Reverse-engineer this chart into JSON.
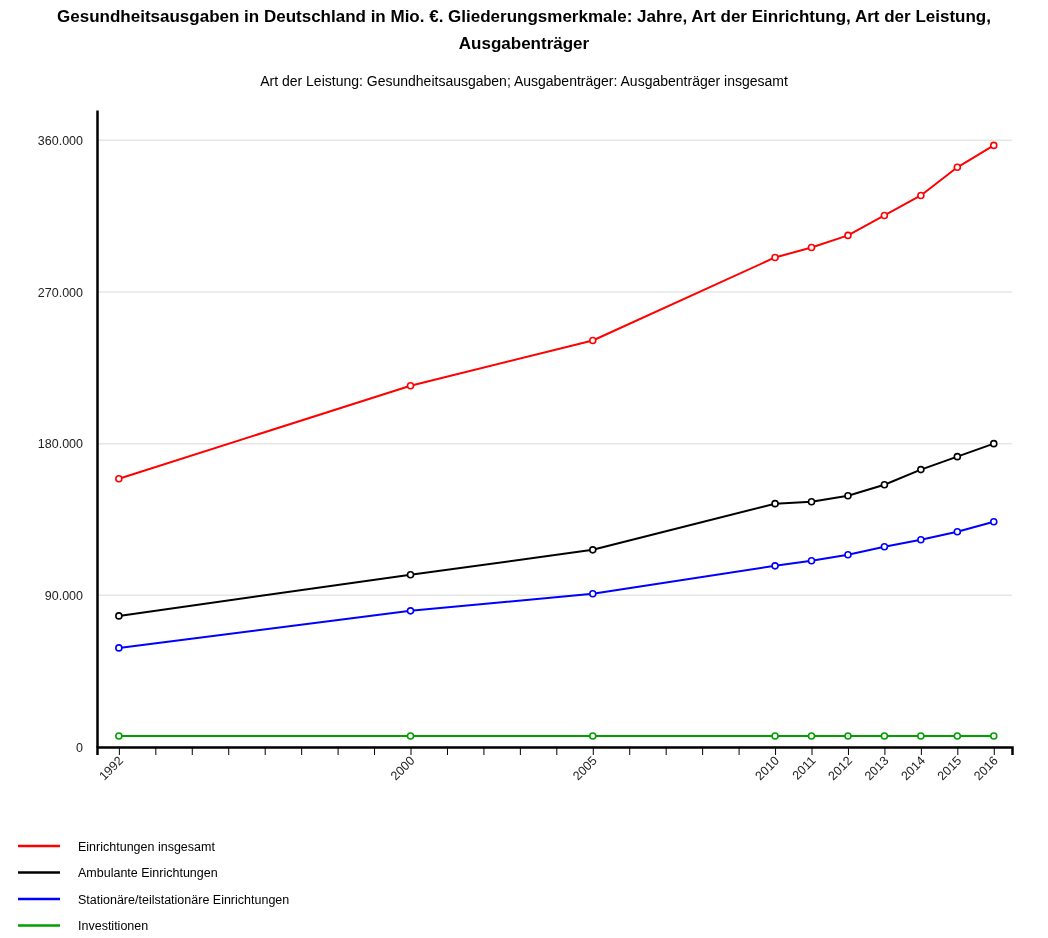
{
  "chart_data": {
    "type": "line",
    "title": "Gesundheitsausgaben in Deutschland in Mio. €. Gliederungsmerkmale: Jahre, Art der Einrichtung, Art der Leistung, Ausgabenträger",
    "subtitle": "Art der Leistung: Gesundheitsausgaben; Ausgabenträger: Ausgabenträger insgesamt",
    "x": [
      1992,
      2000,
      2005,
      2010,
      2011,
      2012,
      2013,
      2014,
      2015,
      2016
    ],
    "xlim": [
      1991.4,
      2016.5
    ],
    "xticks": [
      1992,
      {
        "value": 1993,
        "label": null
      },
      {
        "value": 1994,
        "label": null
      },
      {
        "value": 1995,
        "label": null
      },
      {
        "value": 1996,
        "label": null
      },
      {
        "value": 1997,
        "label": null
      },
      {
        "value": 1998,
        "label": null
      },
      {
        "value": 1999,
        "label": null
      },
      2000,
      {
        "value": 2001,
        "label": null
      },
      {
        "value": 2002,
        "label": null
      },
      {
        "value": 2003,
        "label": null
      },
      {
        "value": 2004,
        "label": null
      },
      2005,
      {
        "value": 2006,
        "label": null
      },
      {
        "value": 2007,
        "label": null
      },
      {
        "value": 2008,
        "label": null
      },
      {
        "value": 2009,
        "label": null
      },
      2010,
      2011,
      2012,
      2013,
      2014,
      2015,
      2016
    ],
    "ylim": [
      0,
      378000
    ],
    "yticks": [
      0,
      {
        "value": 90000,
        "label": "90.000"
      },
      {
        "value": 180000,
        "label": "180.000"
      },
      {
        "value": 270000,
        "label": "270.000"
      },
      {
        "value": 360000,
        "label": "360.000"
      }
    ],
    "grid": "y",
    "legend": "bottom",
    "marker": "circle",
    "series": [
      {
        "name": "Einrichtungen insgesamt",
        "color": "#ff0000",
        "values": [
          159200,
          214400,
          241200,
          290500,
          296400,
          303600,
          315400,
          327300,
          344000,
          357000
        ]
      },
      {
        "name": "Ambulante Einrichtungen",
        "color": "#000000",
        "values": [
          77800,
          102200,
          117000,
          144400,
          145500,
          149100,
          155600,
          164600,
          172300,
          180000
        ]
      },
      {
        "name": "Stationäre/teilstationäre Einrichtungen",
        "color": "#0000ff",
        "values": [
          58800,
          80800,
          90900,
          107500,
          110500,
          114100,
          118800,
          123000,
          127700,
          133700
        ]
      },
      {
        "name": "Investitionen",
        "color": "#00a000",
        "values": [
          6500,
          6500,
          6500,
          6500,
          6500,
          6500,
          6500,
          6500,
          6500,
          6500
        ]
      }
    ]
  }
}
